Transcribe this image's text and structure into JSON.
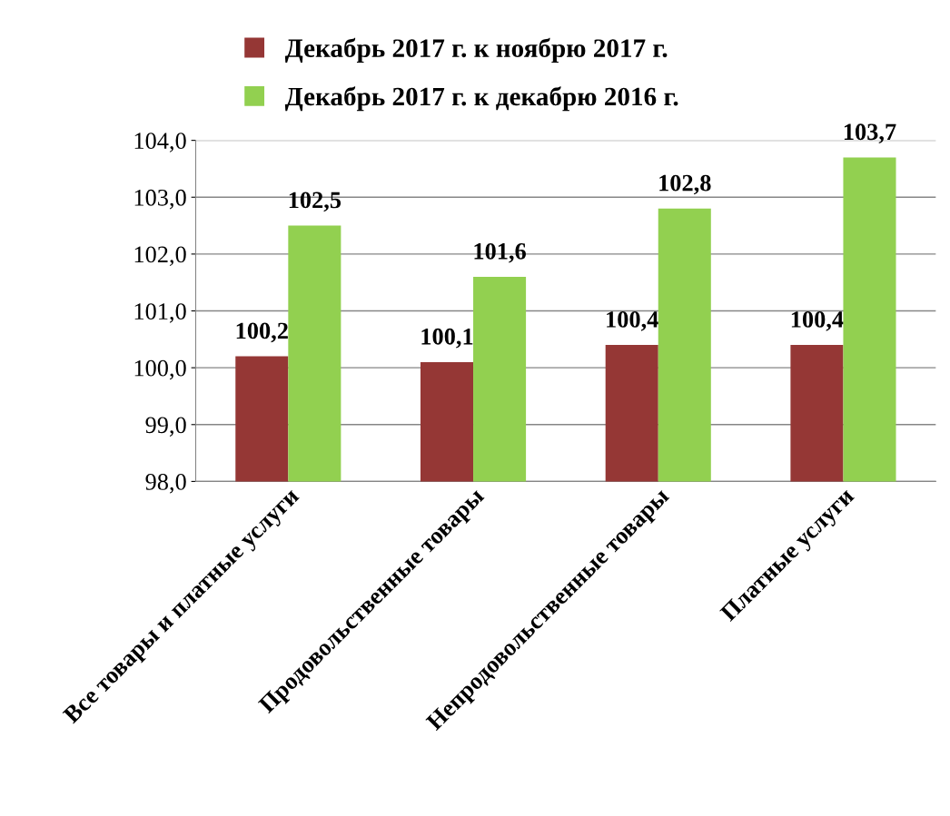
{
  "chart_data": {
    "type": "bar",
    "categories": [
      "Все товары и платные услуги",
      "Продовольственные товары",
      "Непродовольственные товары",
      "Платные услуги"
    ],
    "series": [
      {
        "name": "Декабрь 2017 г. к ноябрю 2017 г.",
        "color": "#953735",
        "values": [
          100.2,
          100.1,
          100.4,
          100.4
        ],
        "value_labels": [
          "100,2",
          "100,1",
          "100,4",
          "100,4"
        ]
      },
      {
        "name": "Декабрь 2017 г. к декабрю 2016 г.",
        "color": "#92d050",
        "values": [
          102.5,
          101.6,
          102.8,
          103.7
        ],
        "value_labels": [
          "102,5",
          "101,6",
          "102,8",
          "103,7"
        ]
      }
    ],
    "ylim": [
      98,
      104
    ],
    "yticks": [
      {
        "value": 98,
        "label": "98,0"
      },
      {
        "value": 99,
        "label": "99,0"
      },
      {
        "value": 100,
        "label": "100,0"
      },
      {
        "value": 101,
        "label": "101,0"
      },
      {
        "value": 102,
        "label": "102,0"
      },
      {
        "value": 103,
        "label": "103,0"
      },
      {
        "value": 104,
        "label": "104,0"
      }
    ],
    "grid": "y",
    "legend": "top"
  }
}
